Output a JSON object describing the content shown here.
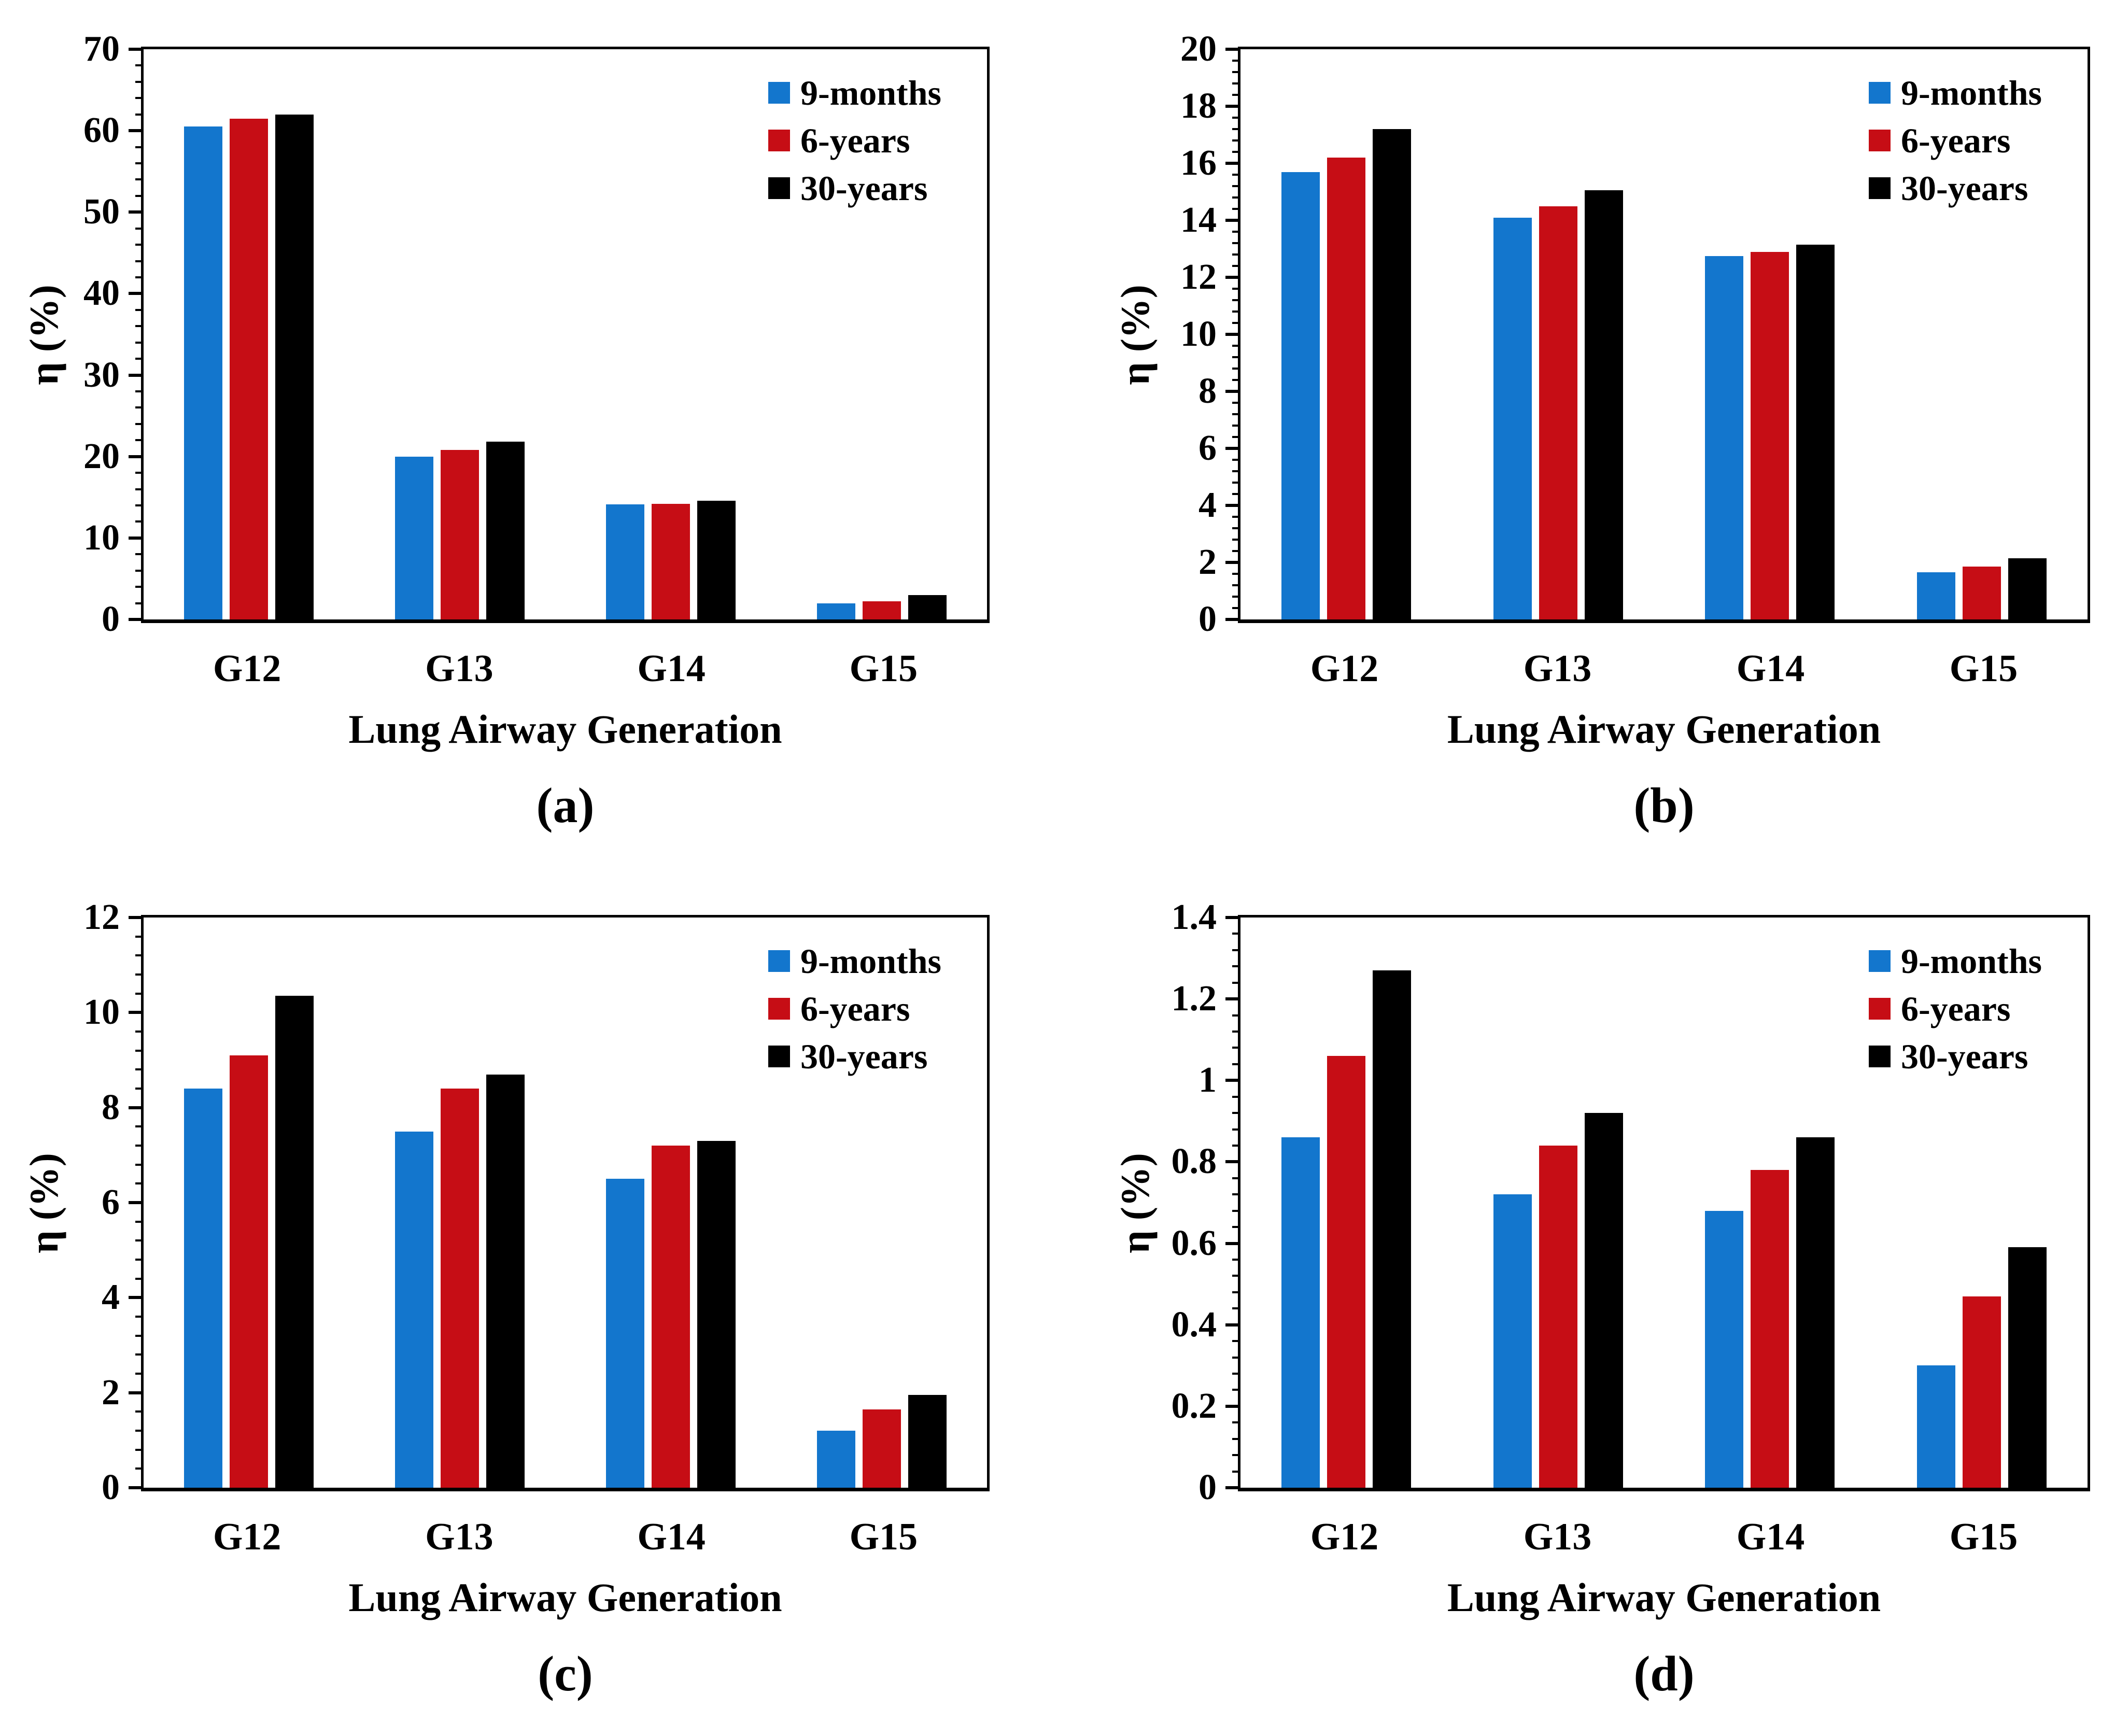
{
  "figure": {
    "background_color": "#ffffff",
    "text_color": "#000000"
  },
  "legend": {
    "items": [
      {
        "label": "9-months",
        "color": "#1376CD"
      },
      {
        "label": "6-years",
        "color": "#C60D15"
      },
      {
        "label": "30-years",
        "color": "#000000"
      }
    ]
  },
  "chart_data": [
    {
      "type": "bar",
      "panel_label": "(a)",
      "ylabel": "η (%)",
      "xlabel": "Lung Airway  Generation",
      "categories": [
        "G12",
        "G13",
        "G14",
        "G15"
      ],
      "ylim": [
        0,
        70
      ],
      "ytick_values": [
        0,
        10,
        20,
        30,
        40,
        50,
        60,
        70
      ],
      "ytick_labels": [
        "0",
        "10",
        "20",
        "30",
        "40",
        "50",
        "60",
        "70"
      ],
      "minor_ticks_per_major": 4,
      "grid": "off",
      "legend_position": "top-right",
      "series": [
        {
          "name": "9-months",
          "color": "#1376CD",
          "values": [
            60.5,
            20.0,
            14.1,
            2.0
          ]
        },
        {
          "name": "6-years",
          "color": "#C60D15",
          "values": [
            61.5,
            20.8,
            14.2,
            2.2
          ]
        },
        {
          "name": "30-years",
          "color": "#000000",
          "values": [
            62.0,
            21.8,
            14.6,
            3.0
          ]
        }
      ]
    },
    {
      "type": "bar",
      "panel_label": "(b)",
      "ylabel": "η (%)",
      "xlabel": "Lung Airway Generation",
      "categories": [
        "G12",
        "G13",
        "G14",
        "G15"
      ],
      "ylim": [
        0,
        20
      ],
      "ytick_values": [
        0,
        2,
        4,
        6,
        8,
        10,
        12,
        14,
        16,
        18,
        20
      ],
      "ytick_labels": [
        "0",
        "2",
        "4",
        "6",
        "8",
        "10",
        "12",
        "14",
        "16",
        "18",
        "20"
      ],
      "minor_ticks_per_major": 4,
      "grid": "off",
      "legend_position": "top-right",
      "series": [
        {
          "name": "9-months",
          "color": "#1376CD",
          "values": [
            15.7,
            14.1,
            12.75,
            1.65
          ]
        },
        {
          "name": "6-years",
          "color": "#C60D15",
          "values": [
            16.2,
            14.5,
            12.9,
            1.85
          ]
        },
        {
          "name": "30-years",
          "color": "#000000",
          "values": [
            17.2,
            15.05,
            13.15,
            2.15
          ]
        }
      ]
    },
    {
      "type": "bar",
      "panel_label": "(c)",
      "ylabel": "η (%)",
      "xlabel": "Lung Airway Generation",
      "categories": [
        "G12",
        "G13",
        "G14",
        "G15"
      ],
      "ylim": [
        0,
        12
      ],
      "ytick_values": [
        0,
        2,
        4,
        6,
        8,
        10,
        12
      ],
      "ytick_labels": [
        "0",
        "2",
        "4",
        "6",
        "8",
        "10",
        "12"
      ],
      "minor_ticks_per_major": 4,
      "grid": "off",
      "legend_position": "top-right",
      "series": [
        {
          "name": "9-months",
          "color": "#1376CD",
          "values": [
            8.4,
            7.5,
            6.5,
            1.2
          ]
        },
        {
          "name": "6-years",
          "color": "#C60D15",
          "values": [
            9.1,
            8.4,
            7.2,
            1.65
          ]
        },
        {
          "name": "30-years",
          "color": "#000000",
          "values": [
            10.35,
            8.7,
            7.3,
            1.95
          ]
        }
      ]
    },
    {
      "type": "bar",
      "panel_label": "(d)",
      "ylabel": "η (%)",
      "xlabel": "Lung Airway Generation",
      "categories": [
        "G12",
        "G13",
        "G14",
        "G15"
      ],
      "ylim": [
        0,
        1.4
      ],
      "ytick_values": [
        0,
        0.2,
        0.4,
        0.6,
        0.8,
        1,
        1.2,
        1.4
      ],
      "ytick_labels": [
        "0",
        "0.2",
        "0.4",
        "0.6",
        "0.8",
        "1",
        "1.2",
        "1.4"
      ],
      "minor_ticks_per_major": 4,
      "grid": "off",
      "legend_position": "top-right",
      "series": [
        {
          "name": "9-months",
          "color": "#1376CD",
          "values": [
            0.86,
            0.72,
            0.68,
            0.3
          ]
        },
        {
          "name": "6-years",
          "color": "#C60D15",
          "values": [
            1.06,
            0.84,
            0.78,
            0.47
          ]
        },
        {
          "name": "30-years",
          "color": "#000000",
          "values": [
            1.27,
            0.92,
            0.86,
            0.59
          ]
        }
      ]
    }
  ]
}
